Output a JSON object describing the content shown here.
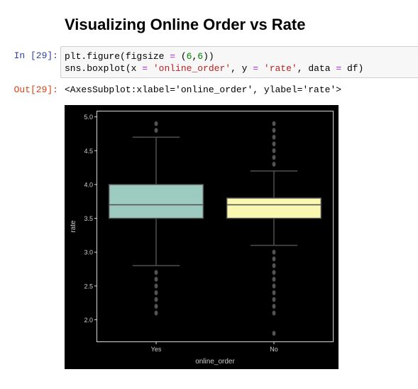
{
  "notebook": {
    "heading": "Visualizing Online Order vs Rate",
    "cells": {
      "input": {
        "prompt": "In [29]:",
        "code": {
          "line1": {
            "t1": "plt.figure(figsize ",
            "t2": "=",
            "t3": " (",
            "t4": "6",
            "t5": ",",
            "t6": "6",
            "t7": "))"
          },
          "line2": {
            "t1": "sns.boxplot(x ",
            "t2": "=",
            "t3": " ",
            "t4": "'online_order'",
            "t5": ", y ",
            "t6": "=",
            "t7": " ",
            "t8": "'rate'",
            "t9": ", data ",
            "t10": "=",
            "t11": " df)"
          }
        }
      },
      "output": {
        "prompt": "Out[29]:",
        "text": "<AxesSubplot:xlabel='online_order', ylabel='rate'>"
      }
    }
  },
  "colors": {
    "figure_background": "#000000",
    "axes_frame": "#d8d8d8",
    "box_edge": "#4f4f4f",
    "box_yes_fill": "#9ecbc0",
    "box_no_fill": "#f9f7b0",
    "outlier_fill": "#555555"
  },
  "chart_data": {
    "type": "box",
    "title": "",
    "xlabel": "online_order",
    "ylabel": "rate",
    "ylim": [
      1.68,
      5.08
    ],
    "yticks": [
      "2.0",
      "2.5",
      "3.0",
      "3.5",
      "4.0",
      "4.5",
      "5.0"
    ],
    "grid": false,
    "categories": [
      "Yes",
      "No"
    ],
    "boxes": [
      {
        "category": "Yes",
        "whisker_low": 2.8,
        "q1": 3.5,
        "median": 3.7,
        "q3": 4.0,
        "whisker_high": 4.7,
        "outliers": [
          2.1,
          2.2,
          2.3,
          2.4,
          2.5,
          2.6,
          2.7,
          4.8,
          4.9
        ],
        "color": "#9ecbc0"
      },
      {
        "category": "No",
        "whisker_low": 3.1,
        "q1": 3.5,
        "median": 3.7,
        "q3": 3.8,
        "whisker_high": 4.2,
        "outliers": [
          1.8,
          2.1,
          2.2,
          2.3,
          2.4,
          2.5,
          2.6,
          2.7,
          2.8,
          2.9,
          3.0,
          4.3,
          4.4,
          4.5,
          4.6,
          4.7,
          4.8,
          4.9
        ],
        "color": "#f9f7b0"
      }
    ]
  }
}
